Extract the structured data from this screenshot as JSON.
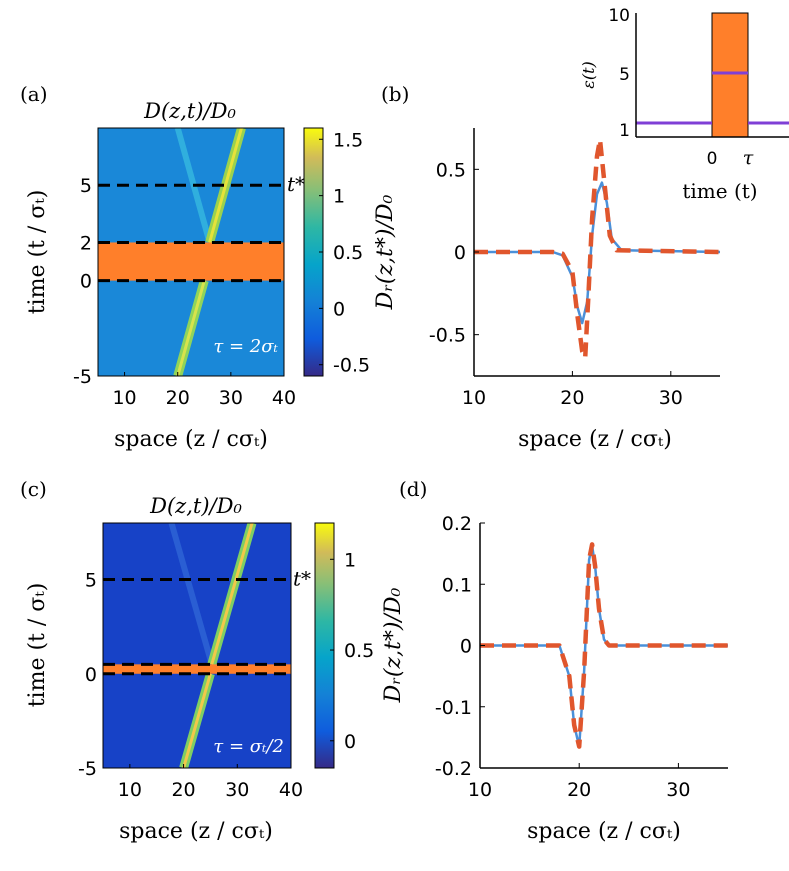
{
  "chart_data": [
    {
      "id": "a",
      "type": "heatmap",
      "panel_label": "(a)",
      "title": "D(z,t)/D₀",
      "xlabel": "space (z / cσₜ)",
      "ylabel": "time (t / σₜ)",
      "xlim": [
        5,
        40
      ],
      "ylim": [
        -5,
        8
      ],
      "xticks": [
        "10",
        "20",
        "30",
        "40"
      ],
      "yticks": [
        "-5",
        "0",
        "2",
        "5"
      ],
      "colorbar_ticks": [
        "1.5",
        "1",
        "0.5",
        "0",
        "-0.5"
      ],
      "colorbar_range": [
        -0.6,
        1.6
      ],
      "band": [
        0,
        2
      ],
      "band_color": "#ff7f2a",
      "t_star": 5,
      "t_star_label": "t*",
      "annotation": "τ = 2σₜ",
      "pulse_center": 25,
      "pulse_speed": 1
    },
    {
      "id": "b",
      "type": "line",
      "panel_label": "(b)",
      "xlabel": "space (z / cσₜ)",
      "ylabel": "Dᵣ(z,t*)/D₀",
      "xlim": [
        10,
        35
      ],
      "ylim": [
        -0.75,
        0.75
      ],
      "xticks": [
        "10",
        "20",
        "30"
      ],
      "yticks": [
        "0.5",
        "0",
        "-0.5"
      ],
      "series": [
        {
          "name": "solid",
          "color": "#4a90d9",
          "style": "solid",
          "x": [
            10,
            18,
            19,
            20,
            20.5,
            21,
            21.5,
            22,
            22.5,
            23,
            23.5,
            24,
            25,
            35
          ],
          "y": [
            0,
            0,
            -0.02,
            -0.15,
            -0.33,
            -0.43,
            -0.3,
            0.1,
            0.35,
            0.42,
            0.3,
            0.08,
            0.01,
            0
          ]
        },
        {
          "name": "dashed",
          "color": "#e0562d",
          "style": "dashed",
          "x": [
            10,
            18,
            19,
            20,
            20.5,
            21,
            21.3,
            21.6,
            22,
            22.5,
            22.8,
            23.2,
            23.8,
            24.5,
            35
          ],
          "y": [
            0,
            0,
            -0.01,
            -0.12,
            -0.38,
            -0.6,
            -0.64,
            -0.3,
            0.2,
            0.58,
            0.68,
            0.45,
            0.1,
            0.01,
            0
          ]
        }
      ]
    },
    {
      "id": "inset",
      "type": "line",
      "ylabel": "ε(t)",
      "xlabel": "time (t)",
      "ylim": [
        0,
        10
      ],
      "yticks": [
        "10",
        "5",
        "1"
      ],
      "xticks": [
        "0",
        "τ"
      ],
      "band_color": "#ff7f2a",
      "line_color": "#7f3fd6",
      "base_value": 1,
      "peak_value": 5
    },
    {
      "id": "c",
      "type": "heatmap",
      "panel_label": "(c)",
      "title": "D(z,t)/D₀",
      "xlabel": "space (z / cσₜ)",
      "ylabel": "time (t / σₜ)",
      "xlim": [
        5,
        40
      ],
      "ylim": [
        -5,
        8
      ],
      "xticks": [
        "10",
        "20",
        "30",
        "40"
      ],
      "yticks": [
        "-5",
        "0",
        "5"
      ],
      "colorbar_ticks": [
        "1",
        "0.5",
        "0"
      ],
      "colorbar_range": [
        -0.15,
        1.2
      ],
      "band": [
        0,
        0.5
      ],
      "band_color": "#ff7f2a",
      "t_star": 5,
      "t_star_label": "t*",
      "annotation": "τ = σₜ/2",
      "pulse_center": 25,
      "pulse_speed": 1
    },
    {
      "id": "d",
      "type": "line",
      "panel_label": "(d)",
      "xlabel": "space (z / cσₜ)",
      "ylabel": "Dᵣ(z,t*)/D₀",
      "xlim": [
        10,
        35
      ],
      "ylim": [
        -0.2,
        0.2
      ],
      "xticks": [
        "10",
        "20",
        "30"
      ],
      "yticks": [
        "0.2",
        "0.1",
        "0",
        "-0.1",
        "-0.2"
      ],
      "series": [
        {
          "name": "solid",
          "color": "#4a90d9",
          "style": "solid",
          "x": [
            10,
            18,
            19,
            19.5,
            20,
            20.5,
            21,
            21.3,
            21.6,
            22,
            22.5,
            23,
            35
          ],
          "y": [
            0,
            0,
            -0.05,
            -0.13,
            -0.165,
            -0.04,
            0.14,
            0.163,
            0.13,
            0.06,
            0.01,
            0,
            0
          ]
        },
        {
          "name": "dashed",
          "color": "#e0562d",
          "style": "dashed",
          "x": [
            10,
            18,
            19,
            19.5,
            20,
            20.5,
            21,
            21.3,
            21.6,
            22,
            22.5,
            23,
            35
          ],
          "y": [
            0,
            0,
            -0.05,
            -0.13,
            -0.165,
            -0.04,
            0.14,
            0.165,
            0.13,
            0.06,
            0.01,
            0,
            0
          ]
        }
      ]
    }
  ]
}
